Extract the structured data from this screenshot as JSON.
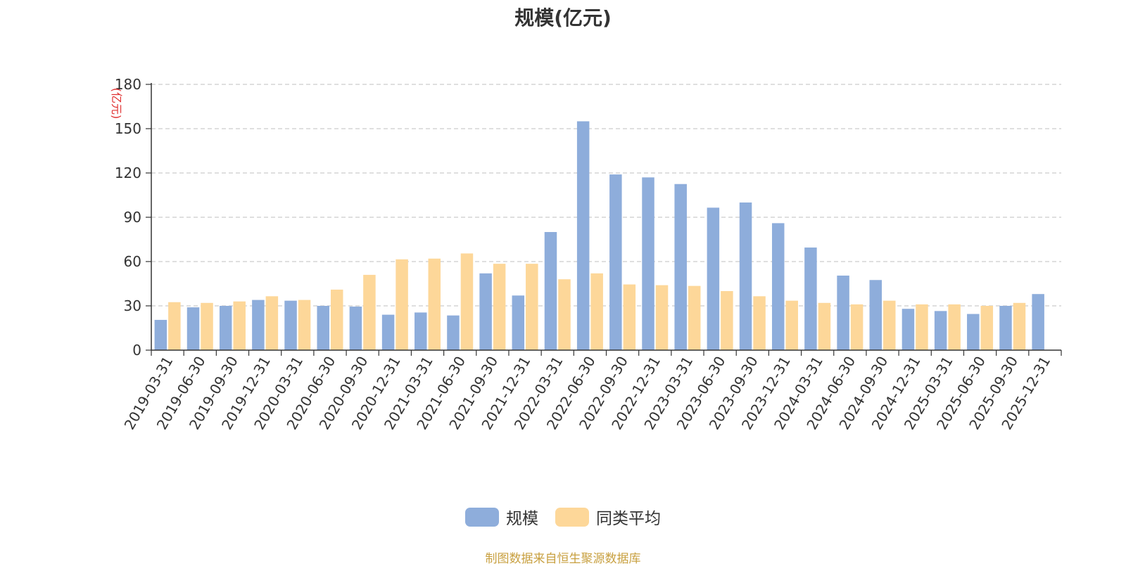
{
  "chart_data": {
    "type": "bar",
    "title": "规模(亿元)",
    "ylabel": "(亿元)",
    "xlabel": "",
    "ylim": [
      0,
      180
    ],
    "yticks": [
      0,
      30,
      60,
      90,
      120,
      150,
      180
    ],
    "grid": true,
    "legend_position": "bottom",
    "categories": [
      "2019-03-31",
      "2019-06-30",
      "2019-09-30",
      "2019-12-31",
      "2020-03-31",
      "2020-06-30",
      "2020-09-30",
      "2020-12-31",
      "2021-03-31",
      "2021-06-30",
      "2021-09-30",
      "2021-12-31",
      "2022-03-31",
      "2022-06-30",
      "2022-09-30",
      "2022-12-31",
      "2023-03-31",
      "2023-06-30",
      "2023-09-30",
      "2023-12-31",
      "2024-03-31",
      "2024-06-30",
      "2024-09-30",
      "2024-12-31",
      "2025-03-31",
      "2025-06-30",
      "2025-09-30",
      "2025-12-31"
    ],
    "series": [
      {
        "name": "规模",
        "color": "#8eaddb",
        "values": [
          20.5,
          29,
          30,
          34,
          33.5,
          30,
          29.5,
          24,
          25.5,
          23.5,
          52,
          37,
          80,
          155,
          119,
          117,
          112.5,
          96.5,
          100,
          86,
          69.5,
          50.5,
          47.5,
          28,
          26.5,
          24.5,
          30,
          38
        ]
      },
      {
        "name": "同类平均",
        "color": "#fdd799",
        "values": [
          32.5,
          32,
          33,
          36.5,
          34,
          41,
          51,
          61.5,
          62,
          65.5,
          58.5,
          58.5,
          48,
          52,
          44.5,
          44,
          43.5,
          40,
          36.5,
          33.5,
          32,
          31,
          33.5,
          31,
          31,
          30,
          32,
          null
        ]
      }
    ]
  },
  "source_note": "制图数据来自恒生聚源数据库"
}
